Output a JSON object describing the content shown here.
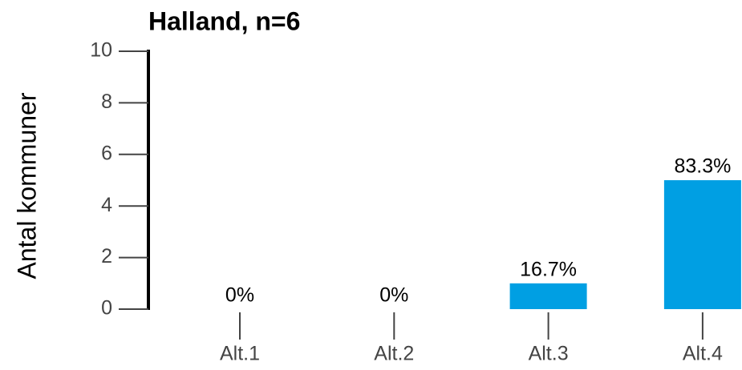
{
  "chart_data": {
    "type": "bar",
    "title": "Halland, n=6",
    "y_label": "Antal kommuner",
    "categories": [
      "Alt.1",
      "Alt.2",
      "Alt.3",
      "Alt.4"
    ],
    "values": [
      0,
      0,
      1,
      5
    ],
    "percent_labels": [
      "0%",
      "0%",
      "16.7%",
      "83.3%"
    ],
    "color": "#009fe3",
    "ylim": [
      0,
      10
    ],
    "yticks": [
      0,
      2,
      4,
      6,
      8,
      10
    ],
    "grid": false
  }
}
